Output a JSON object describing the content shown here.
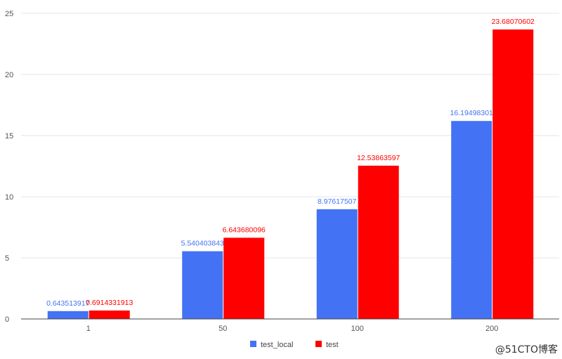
{
  "chart_data": {
    "type": "bar",
    "categories": [
      "1",
      "50",
      "100",
      "200"
    ],
    "series": [
      {
        "name": "test_local",
        "color": "#4472f4",
        "values": [
          0.643513917,
          5.540403843,
          8.97617507,
          16.19498301
        ],
        "labels": [
          "0.643513917",
          "5.540403843",
          "8.97617507",
          "16.19498301"
        ]
      },
      {
        "name": "test",
        "color": "#ff0000",
        "values": [
          0.6914331913,
          6.643680096,
          12.53863597,
          23.68070602
        ],
        "labels": [
          "0.6914331913",
          "6.643680096",
          "12.53863597",
          "23.68070602"
        ]
      }
    ],
    "title": "",
    "xlabel": "",
    "ylabel": "",
    "ylim": [
      0,
      25
    ],
    "yticks": [
      "0",
      "5",
      "10",
      "15",
      "20",
      "25"
    ],
    "grid": true,
    "legend_position": "bottom"
  },
  "watermark": "@51CTO博客"
}
